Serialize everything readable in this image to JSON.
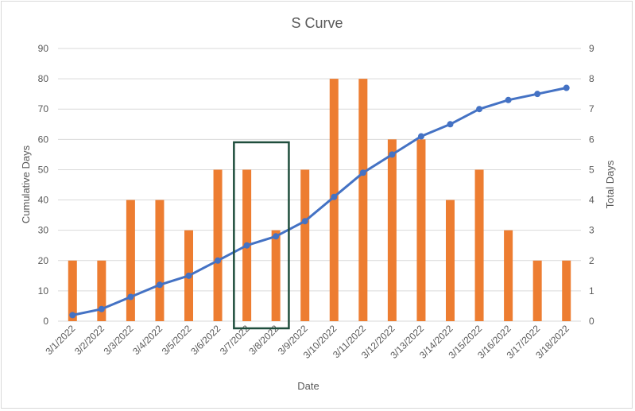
{
  "chart_data": {
    "type": "bar",
    "title": "S Curve",
    "xlabel": "Date",
    "ylabel": "Cumulative Days",
    "y2label": "Total Days",
    "ylim": [
      0,
      90
    ],
    "y2lim": [
      0,
      9
    ],
    "yticks": [
      "0",
      "10",
      "20",
      "30",
      "40",
      "50",
      "60",
      "70",
      "80",
      "90"
    ],
    "y2ticks": [
      "0",
      "1",
      "2",
      "3",
      "4",
      "5",
      "6",
      "7",
      "8",
      "9"
    ],
    "grid": true,
    "categories": [
      "3/1/2022",
      "3/2/2022",
      "3/3/2022",
      "3/4/2022",
      "3/5/2022",
      "3/6/2022",
      "3/7/2022",
      "3/8/2022",
      "3/9/2022",
      "3/10/2022",
      "3/11/2022",
      "3/12/2022",
      "3/13/2022",
      "3/14/2022",
      "3/15/2022",
      "3/16/2022",
      "3/17/2022",
      "3/18/2022"
    ],
    "series": [
      {
        "type": "bar",
        "axis": "left",
        "color": "#ed7d31",
        "values": [
          20,
          20,
          40,
          40,
          30,
          50,
          50,
          30,
          50,
          80,
          80,
          60,
          60,
          40,
          50,
          30,
          20,
          20
        ]
      },
      {
        "type": "line",
        "axis": "right",
        "color": "#4472c4",
        "values": [
          0.2,
          0.4,
          0.8,
          1.2,
          1.5,
          2.0,
          2.5,
          2.8,
          3.3,
          4.1,
          4.9,
          5.5,
          6.1,
          6.5,
          7.0,
          7.3,
          7.5,
          7.7
        ]
      }
    ],
    "highlight": {
      "categories": [
        "3/7/2022",
        "3/8/2022"
      ],
      "color": "#1f4e3d"
    }
  }
}
